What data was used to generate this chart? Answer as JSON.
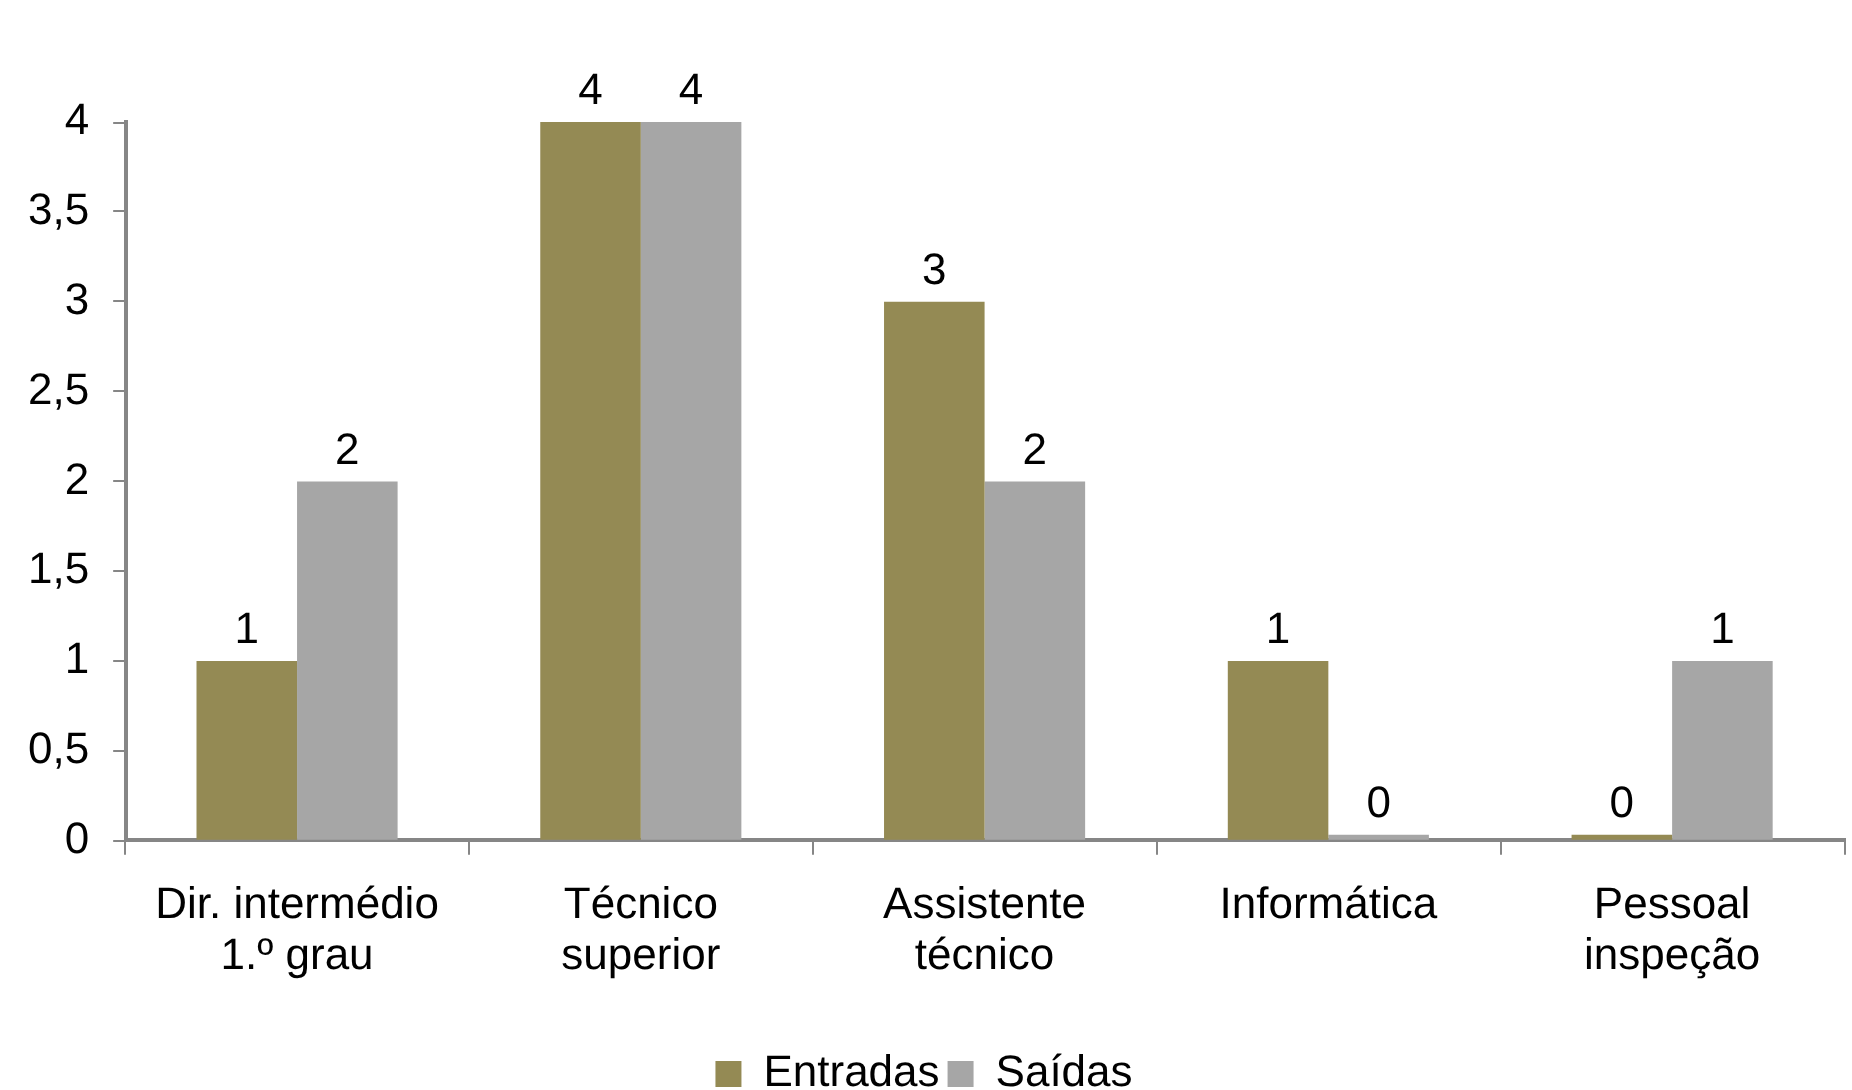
{
  "chart_data": {
    "type": "bar",
    "categories": [
      "Dir. intermédio 1.º grau",
      "Técnico superior",
      "Assistente técnico",
      "Informática",
      "Pessoal inspeção"
    ],
    "series": [
      {
        "name": "Entradas",
        "color": "#948a54",
        "values": [
          1,
          4,
          3,
          1,
          0
        ]
      },
      {
        "name": "Saídas",
        "color": "#a6a6a6",
        "values": [
          2,
          4,
          2,
          0,
          1
        ]
      }
    ],
    "ylim": [
      0,
      4
    ],
    "yticks": [
      0,
      {
        "value": 0.5,
        "label": "0,5"
      },
      1,
      {
        "value": 1.5,
        "label": "1,5"
      },
      2,
      {
        "value": 2.5,
        "label": "2,5"
      },
      3,
      {
        "value": 3.5,
        "label": "3,5"
      },
      4
    ],
    "grid": false,
    "legend": "bottom",
    "data_labels": true
  }
}
